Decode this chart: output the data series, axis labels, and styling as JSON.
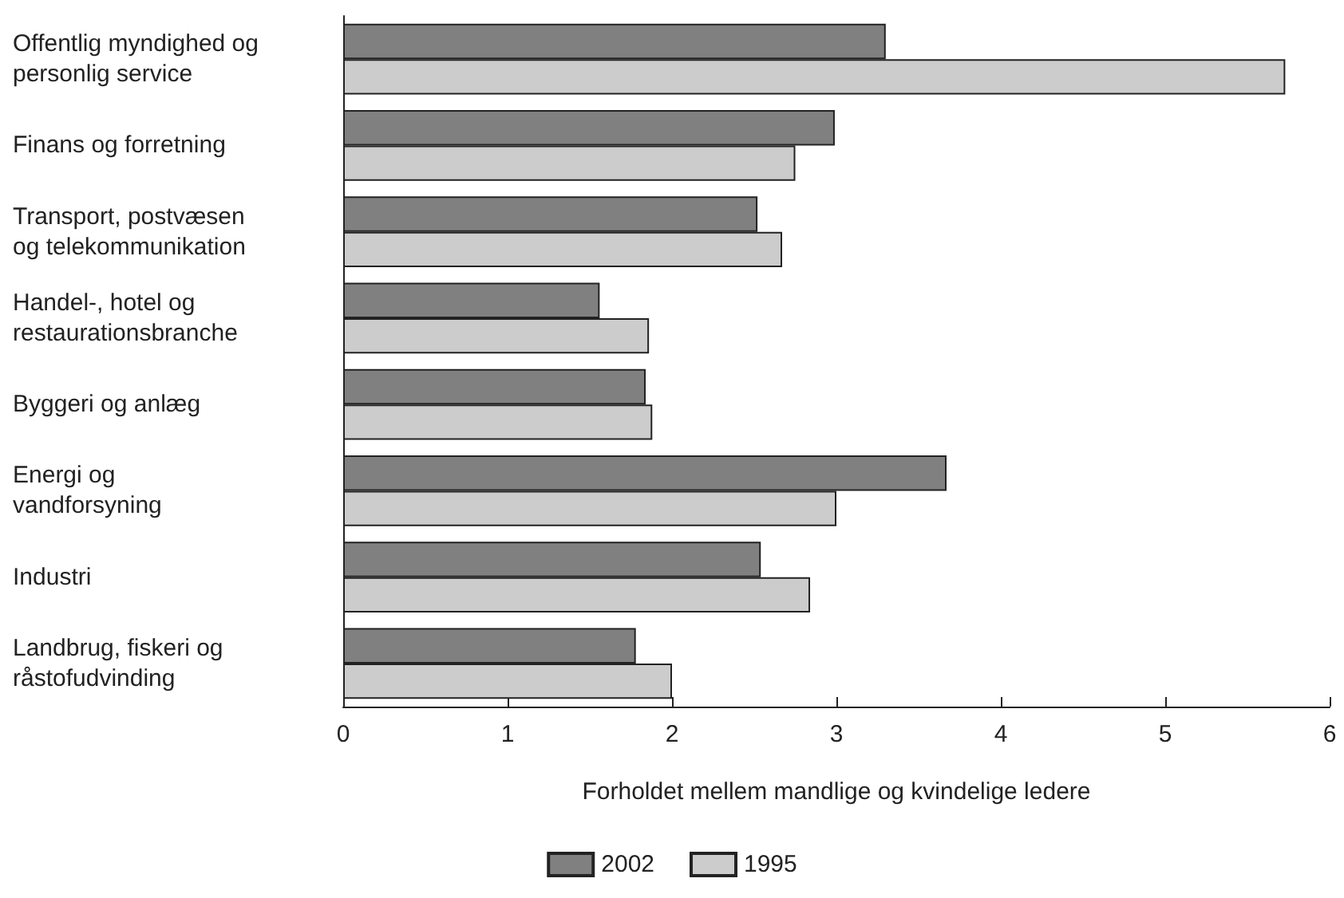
{
  "chart_data": {
    "type": "bar",
    "orientation": "horizontal",
    "xlabel": "Forholdet mellem mandlige og kvindelige ledere",
    "categories": [
      "Offentlig myndighed og\npersonlig service",
      "Finans og forretning",
      "Transport, postvæsen\nog telekommunikation",
      "Handel-, hotel og\nrestaurationsbranche",
      "Byggeri og anlæg",
      "Energi og\nvandforsyning",
      "Industri",
      "Landbrug, fiskeri og\nråstofudvinding"
    ],
    "series": [
      {
        "name": "2002",
        "color": "#808080",
        "values": [
          3.3,
          2.99,
          2.52,
          1.56,
          1.84,
          3.67,
          2.54,
          1.78
        ]
      },
      {
        "name": "1995",
        "color": "#cccccc",
        "values": [
          5.73,
          2.75,
          2.67,
          1.86,
          1.88,
          3.0,
          2.84,
          2.0
        ]
      }
    ],
    "xlim": [
      0,
      6
    ],
    "xticks": [
      0,
      1,
      2,
      3,
      4,
      5,
      6
    ],
    "grid": false,
    "legend": "bottom"
  }
}
